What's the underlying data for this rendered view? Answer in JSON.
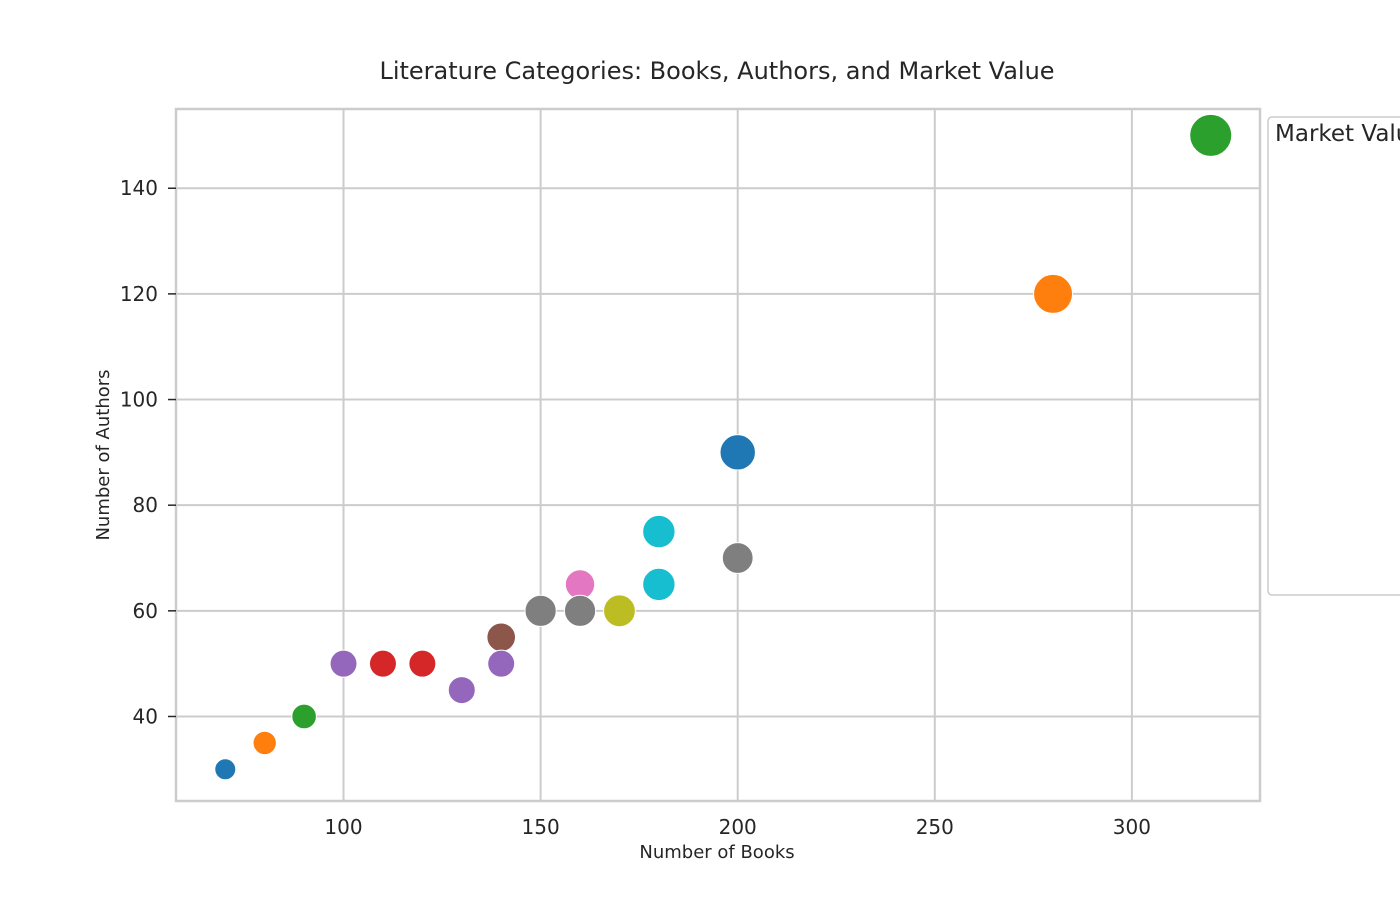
{
  "chart_data": {
    "type": "scatter",
    "title": "Literature Categories: Books, Authors, and Market Value",
    "xlabel": "Number of Books",
    "ylabel": "Number of Authors",
    "xlim": [
      57.5,
      332.5
    ],
    "ylim": [
      24,
      155
    ],
    "xticks": [
      100,
      150,
      200,
      250,
      300
    ],
    "yticks": [
      40,
      60,
      80,
      100,
      120,
      140
    ],
    "grid": true,
    "legend_title": "Market Value",
    "legend_location": "outside right",
    "points": [
      {
        "x": 320,
        "y": 150,
        "size": 1.0,
        "color": "#2ca02c"
      },
      {
        "x": 280,
        "y": 120,
        "size": 0.9,
        "color": "#ff7f0e"
      },
      {
        "x": 200,
        "y": 90,
        "size": 0.78,
        "color": "#1f77b4"
      },
      {
        "x": 180,
        "y": 75,
        "size": 0.68,
        "color": "#17becf"
      },
      {
        "x": 200,
        "y": 70,
        "size": 0.63,
        "color": "#7f7f7f"
      },
      {
        "x": 180,
        "y": 65,
        "size": 0.68,
        "color": "#17becf"
      },
      {
        "x": 160,
        "y": 65,
        "size": 0.58,
        "color": "#e377c2"
      },
      {
        "x": 150,
        "y": 60,
        "size": 0.64,
        "color": "#7f7f7f"
      },
      {
        "x": 160,
        "y": 60,
        "size": 0.64,
        "color": "#7f7f7f"
      },
      {
        "x": 170,
        "y": 60,
        "size": 0.66,
        "color": "#bcbd22"
      },
      {
        "x": 140,
        "y": 55,
        "size": 0.55,
        "color": "#8c564b"
      },
      {
        "x": 100,
        "y": 50,
        "size": 0.5,
        "color": "#9467bd"
      },
      {
        "x": 110,
        "y": 50,
        "size": 0.5,
        "color": "#d62728"
      },
      {
        "x": 120,
        "y": 50,
        "size": 0.5,
        "color": "#d62728"
      },
      {
        "x": 140,
        "y": 50,
        "size": 0.5,
        "color": "#9467bd"
      },
      {
        "x": 130,
        "y": 45,
        "size": 0.5,
        "color": "#9467bd"
      },
      {
        "x": 90,
        "y": 40,
        "size": 0.42,
        "color": "#2ca02c"
      },
      {
        "x": 80,
        "y": 35,
        "size": 0.38,
        "color": "#ff7f0e"
      },
      {
        "x": 70,
        "y": 30,
        "size": 0.3,
        "color": "#1f77b4"
      }
    ]
  }
}
